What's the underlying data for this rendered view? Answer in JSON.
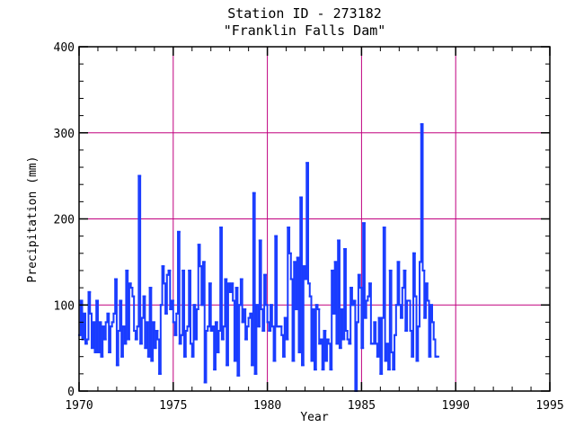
{
  "chart_data": {
    "type": "line",
    "title": "Station ID - 273182",
    "subtitle": "\"Franklin Falls Dam\"",
    "xlabel": "Year",
    "ylabel": "Precipitation (mm)",
    "xlim": [
      1970,
      1995
    ],
    "ylim": [
      0,
      400
    ],
    "x_ticks": [
      1970,
      1975,
      1980,
      1985,
      1990,
      1995
    ],
    "x_tick_labels": [
      "1970",
      "1975",
      "1980",
      "1985",
      "1990",
      "1995"
    ],
    "y_ticks": [
      0,
      100,
      200,
      300,
      400
    ],
    "y_tick_labels": [
      "0",
      "100",
      "200",
      "300",
      "400"
    ],
    "grid": true,
    "grid_color": "#c0007f",
    "series_color": "#1a3cff",
    "series": [
      {
        "start": 1970.0,
        "step": 0.083333,
        "values": [
          65,
          105,
          60,
          90,
          55,
          60,
          115,
          90,
          50,
          80,
          45,
          105,
          45,
          80,
          40,
          75,
          60,
          80,
          90,
          45,
          75,
          80,
          90,
          130,
          30,
          70,
          105,
          40,
          75,
          55,
          140,
          60,
          125,
          120,
          110,
          70,
          60,
          75,
          250,
          55,
          85,
          110,
          50,
          80,
          40,
          120,
          35,
          80,
          50,
          70,
          60,
          20,
          100,
          145,
          125,
          90,
          135,
          140,
          95,
          105,
          80,
          65,
          90,
          185,
          55,
          65,
          140,
          40,
          70,
          75,
          140,
          55,
          40,
          100,
          60,
          95,
          170,
          145,
          100,
          150,
          10,
          70,
          75,
          125,
          70,
          75,
          25,
          80,
          45,
          70,
          190,
          60,
          75,
          130,
          30,
          125,
          115,
          125,
          105,
          35,
          120,
          18,
          100,
          130,
          80,
          95,
          60,
          75,
          85,
          90,
          30,
          230,
          20,
          100,
          75,
          175,
          95,
          70,
          135,
          100,
          80,
          70,
          100,
          75,
          35,
          180,
          75,
          75,
          75,
          65,
          40,
          85,
          60,
          190,
          160,
          130,
          35,
          150,
          95,
          155,
          45,
          225,
          30,
          145,
          130,
          265,
          125,
          110,
          35,
          95,
          25,
          100,
          95,
          55,
          60,
          25,
          70,
          35,
          60,
          55,
          25,
          140,
          90,
          150,
          55,
          175,
          50,
          95,
          60,
          165,
          70,
          60,
          55,
          120,
          100,
          105,
          0,
          80,
          135,
          120,
          50,
          195,
          85,
          105,
          110,
          125,
          55,
          55,
          80,
          55,
          40,
          85,
          20,
          85,
          190,
          35,
          55,
          25,
          140,
          45,
          25,
          65,
          100,
          150,
          100,
          85,
          120,
          140,
          70,
          105,
          105,
          70,
          40,
          160,
          110,
          35,
          75,
          150,
          310,
          140,
          85,
          125,
          105,
          40,
          100,
          80,
          60,
          40,
          40
        ]
      }
    ]
  }
}
